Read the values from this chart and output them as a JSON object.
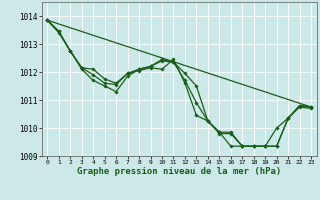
{
  "title": "Graphe pression niveau de la mer (hPa)",
  "bg_color": "#cce8e8",
  "grid_color": "#ffffff",
  "line_color": "#1a5e1a",
  "marker_color": "#1a5e1a",
  "xlim": [
    -0.5,
    23.5
  ],
  "ylim": [
    1009.0,
    1014.5
  ],
  "yticks": [
    1009,
    1010,
    1011,
    1012,
    1013,
    1014
  ],
  "xticks": [
    0,
    1,
    2,
    3,
    4,
    5,
    6,
    7,
    8,
    9,
    10,
    11,
    12,
    13,
    14,
    15,
    16,
    17,
    18,
    19,
    20,
    21,
    22,
    23
  ],
  "series": [
    {
      "x": [
        0,
        1,
        2,
        3,
        4,
        5,
        6,
        7,
        8,
        9,
        10,
        11,
        12,
        13,
        14,
        15,
        16,
        17,
        18,
        19,
        20,
        21,
        22,
        23
      ],
      "y": [
        1013.85,
        1013.45,
        1012.75,
        1012.15,
        1011.9,
        1011.6,
        1011.55,
        1011.95,
        1012.05,
        1012.15,
        1012.1,
        1012.45,
        1011.6,
        1010.45,
        1010.25,
        1009.85,
        1009.85,
        1009.35,
        1009.35,
        1009.35,
        1009.35,
        1010.35,
        1010.8,
        1010.75
      ],
      "marker": true
    },
    {
      "x": [
        0,
        1,
        2,
        3,
        4,
        5,
        6,
        7,
        8,
        9,
        10,
        11,
        12,
        13,
        14,
        15,
        16,
        17,
        18,
        19,
        20,
        21,
        22,
        23
      ],
      "y": [
        1013.85,
        1013.45,
        1012.75,
        1012.15,
        1012.1,
        1011.75,
        1011.6,
        1011.95,
        1012.1,
        1012.2,
        1012.45,
        1012.35,
        1011.7,
        1010.9,
        1010.25,
        1009.8,
        1009.8,
        1009.35,
        1009.35,
        1009.35,
        1009.35,
        1010.35,
        1010.75,
        1010.7
      ],
      "marker": true
    },
    {
      "x": [
        0,
        1,
        2,
        3,
        4,
        5,
        6,
        7,
        8,
        9,
        10,
        11,
        12,
        13,
        14,
        15,
        16,
        17,
        18,
        19,
        20,
        21,
        22,
        23
      ],
      "y": [
        1013.85,
        1013.4,
        1012.75,
        1012.1,
        1011.7,
        1011.5,
        1011.3,
        1011.85,
        1012.1,
        1012.2,
        1012.4,
        1012.35,
        1011.95,
        1011.5,
        1010.25,
        1009.85,
        1009.35,
        1009.35,
        1009.35,
        1009.35,
        1010.0,
        1010.35,
        1010.8,
        1010.75
      ],
      "marker": true
    },
    {
      "x": [
        0,
        23
      ],
      "y": [
        1013.85,
        1010.75
      ],
      "marker": false
    }
  ]
}
